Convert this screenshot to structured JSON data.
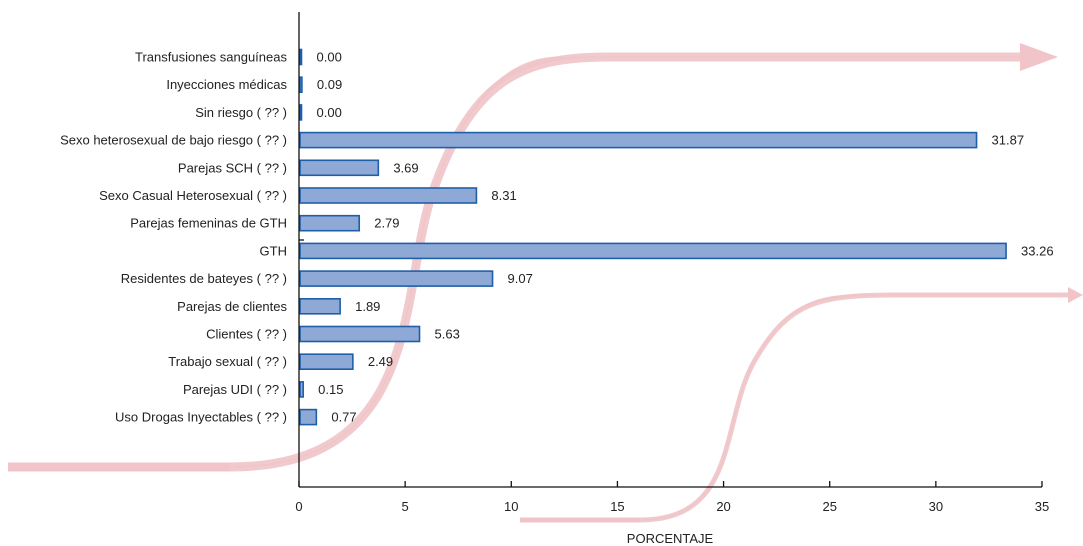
{
  "chart_data": {
    "type": "bar",
    "orientation": "horizontal",
    "categories": [
      "Transfusiones sanguíneas",
      "Inyecciones médicas",
      "Sin riesgo (  ??  )",
      "Sexo heterosexual de bajo riesgo (  ??  )",
      "Parejas SCH (  ??  )",
      "Sexo Casual Heterosexual (  ??  )",
      "Parejas femeninas de GTH",
      "GTH",
      "Residentes de bateyes (  ??  )",
      "Parejas de clientes",
      "Clientes (  ??  )",
      "Trabajo sexual (  ??  )",
      "Parejas UDI (  ??  )",
      "Uso Drogas Inyectables (  ??  )"
    ],
    "values": [
      0.0,
      0.09,
      0.0,
      31.87,
      3.69,
      8.31,
      2.79,
      33.26,
      9.07,
      1.89,
      5.63,
      2.49,
      0.15,
      0.77
    ],
    "value_labels": [
      "0.00",
      "0.09",
      "0.00",
      "31.87",
      "3.69",
      "8.31",
      "2.79",
      "33.26",
      "9.07",
      "1.89",
      "5.63",
      "2.49",
      "0.15",
      "0.77"
    ],
    "xlabel": "PORCENTAJE",
    "ylabel": "",
    "xlim": [
      0,
      35
    ],
    "xticks": [
      "0",
      "5",
      "10",
      "15",
      "20",
      "25",
      "30",
      "35"
    ],
    "grid": false,
    "colors": {
      "bar_fill": "#8ea9d6",
      "bar_stroke": "#1f5fa8",
      "axis": "#111111",
      "decor_arrow": "#f0c4c8"
    }
  }
}
